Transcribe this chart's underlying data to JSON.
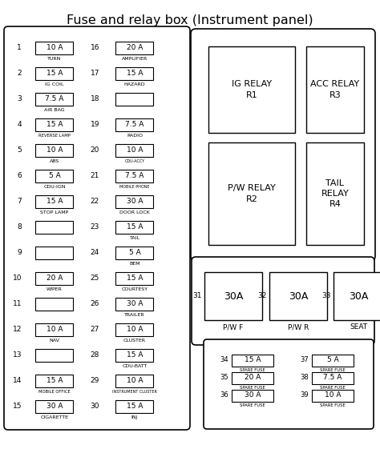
{
  "title": "Fuse and relay box (Instrument panel)",
  "title_fontsize": 11.5,
  "bg_color": "#ffffff",
  "text_color": "#000000",
  "left_fuses": [
    {
      "num": 1,
      "amp": "10 A",
      "label": "TURN"
    },
    {
      "num": 2,
      "amp": "15 A",
      "label": "IG COIL"
    },
    {
      "num": 3,
      "amp": "7.5 A",
      "label": "AIR BAG"
    },
    {
      "num": 4,
      "amp": "15 A",
      "label": "REVERSE LAMP"
    },
    {
      "num": 5,
      "amp": "10 A",
      "label": "ABS"
    },
    {
      "num": 6,
      "amp": "5 A",
      "label": "CDU-IGN"
    },
    {
      "num": 7,
      "amp": "15 A",
      "label": "STOP LAMP"
    },
    {
      "num": 8,
      "amp": "",
      "label": ""
    },
    {
      "num": 9,
      "amp": "",
      "label": ""
    },
    {
      "num": 10,
      "amp": "20 A",
      "label": "WIPER"
    },
    {
      "num": 11,
      "amp": "",
      "label": ""
    },
    {
      "num": 12,
      "amp": "10 A",
      "label": "NAV"
    },
    {
      "num": 13,
      "amp": "",
      "label": ""
    },
    {
      "num": 14,
      "amp": "15 A",
      "label": "MOBILE OFFICE"
    },
    {
      "num": 15,
      "amp": "30 A",
      "label": "CIGARETTE"
    }
  ],
  "right_fuses": [
    {
      "num": 16,
      "amp": "20 A",
      "label": "AMPLIFIER"
    },
    {
      "num": 17,
      "amp": "15 A",
      "label": "HAZARD"
    },
    {
      "num": 18,
      "amp": "",
      "label": ""
    },
    {
      "num": 19,
      "amp": "7.5 A",
      "label": "RADIO"
    },
    {
      "num": 20,
      "amp": "10 A",
      "label": "CDU-ACCY"
    },
    {
      "num": 21,
      "amp": "7.5 A",
      "label": "MOBILE PHONE"
    },
    {
      "num": 22,
      "amp": "30 A",
      "label": "DOOR LOCK"
    },
    {
      "num": 23,
      "amp": "15 A",
      "label": "TAIL"
    },
    {
      "num": 24,
      "amp": "5 A",
      "label": "BEM"
    },
    {
      "num": 25,
      "amp": "15 A",
      "label": "COURTESY"
    },
    {
      "num": 26,
      "amp": "30 A",
      "label": "TRAILER"
    },
    {
      "num": 27,
      "amp": "10 A",
      "label": "CLUSTER"
    },
    {
      "num": 28,
      "amp": "15 A",
      "label": "CDU-BATT"
    },
    {
      "num": 29,
      "amp": "10 A",
      "label": "INSTRUMENT CLUSTER"
    },
    {
      "num": 30,
      "amp": "15 A",
      "label": "INJ"
    }
  ]
}
